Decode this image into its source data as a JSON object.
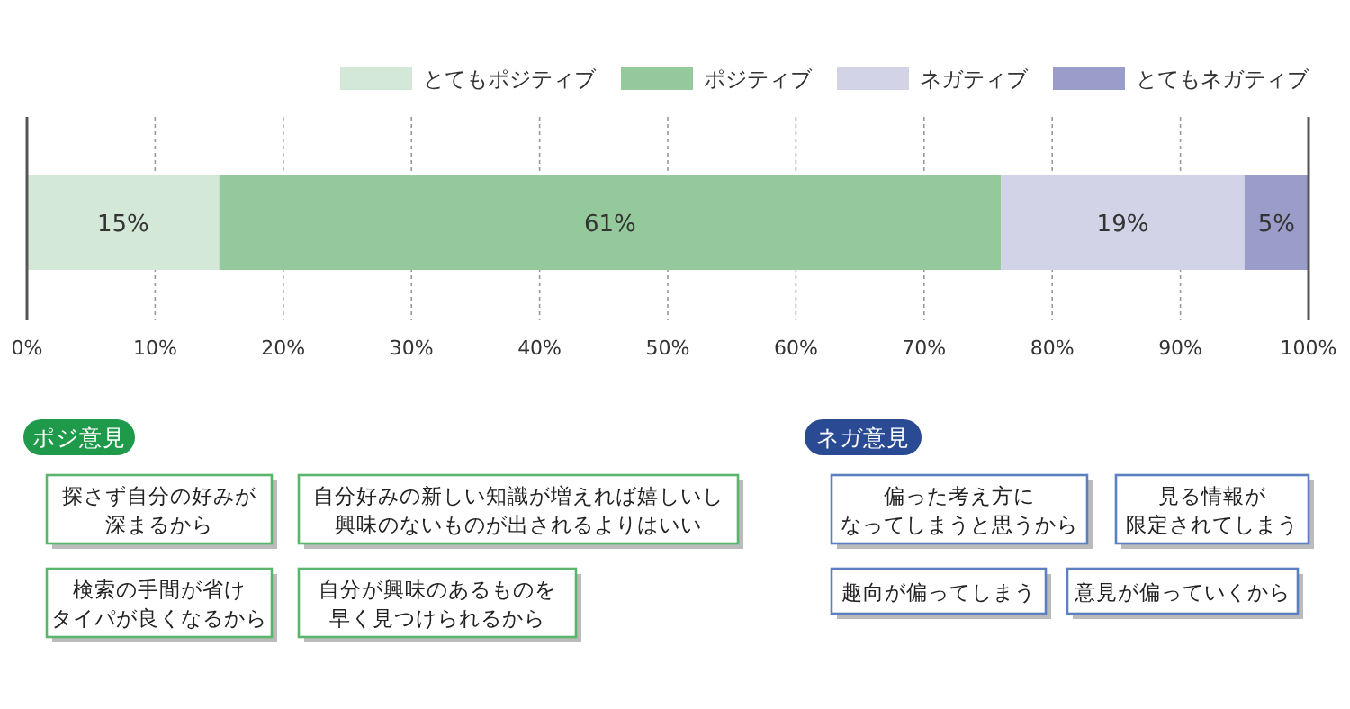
{
  "chart_data": {
    "type": "bar",
    "orientation": "horizontal",
    "stacked": true,
    "categories": [
      null
    ],
    "series": [
      {
        "name": "とてもポジティブ",
        "color": "#d3e8d6",
        "values": [
          15
        ],
        "value_labels": [
          "15%"
        ]
      },
      {
        "name": "ポジティブ",
        "color": "#93c99b",
        "values": [
          61
        ],
        "value_labels": [
          "61%"
        ]
      },
      {
        "name": "ネガティブ",
        "color": "#d2d3e6",
        "values": [
          19
        ],
        "value_labels": [
          "19%"
        ]
      },
      {
        "name": "とてもネガティブ",
        "color": "#9a9cc9",
        "values": [
          5
        ],
        "value_labels": [
          "5%"
        ]
      }
    ],
    "xlim": [
      0,
      100
    ],
    "xticks": [
      {
        "value": 0,
        "label": "0%"
      },
      {
        "value": 10,
        "label": "10%"
      },
      {
        "value": 20,
        "label": "20%"
      },
      {
        "value": 30,
        "label": "30%"
      },
      {
        "value": 40,
        "label": "40%"
      },
      {
        "value": 50,
        "label": "50%"
      },
      {
        "value": 60,
        "label": "60%"
      },
      {
        "value": 70,
        "label": "70%"
      },
      {
        "value": 80,
        "label": "80%"
      },
      {
        "value": 90,
        "label": "90%"
      },
      {
        "value": 100,
        "label": "100%"
      }
    ],
    "grid": "x",
    "legend": "top right",
    "annotations": [
      "ポジ意見",
      "探さず自分の好みが深まるから",
      "自分好みの新しい知識が増えれば嬉しいし興味のないものが出されるよりはいい",
      "検索の手間が省けタイパが良くなるから",
      "自分が興味のあるものを早く見つけられるから",
      "ネガ意見",
      "偏った考え方になってしまうと思うから",
      "見る情報が限定されてしまう",
      "趣向が偏ってしまう",
      "意見が偏っていくから"
    ]
  }
}
